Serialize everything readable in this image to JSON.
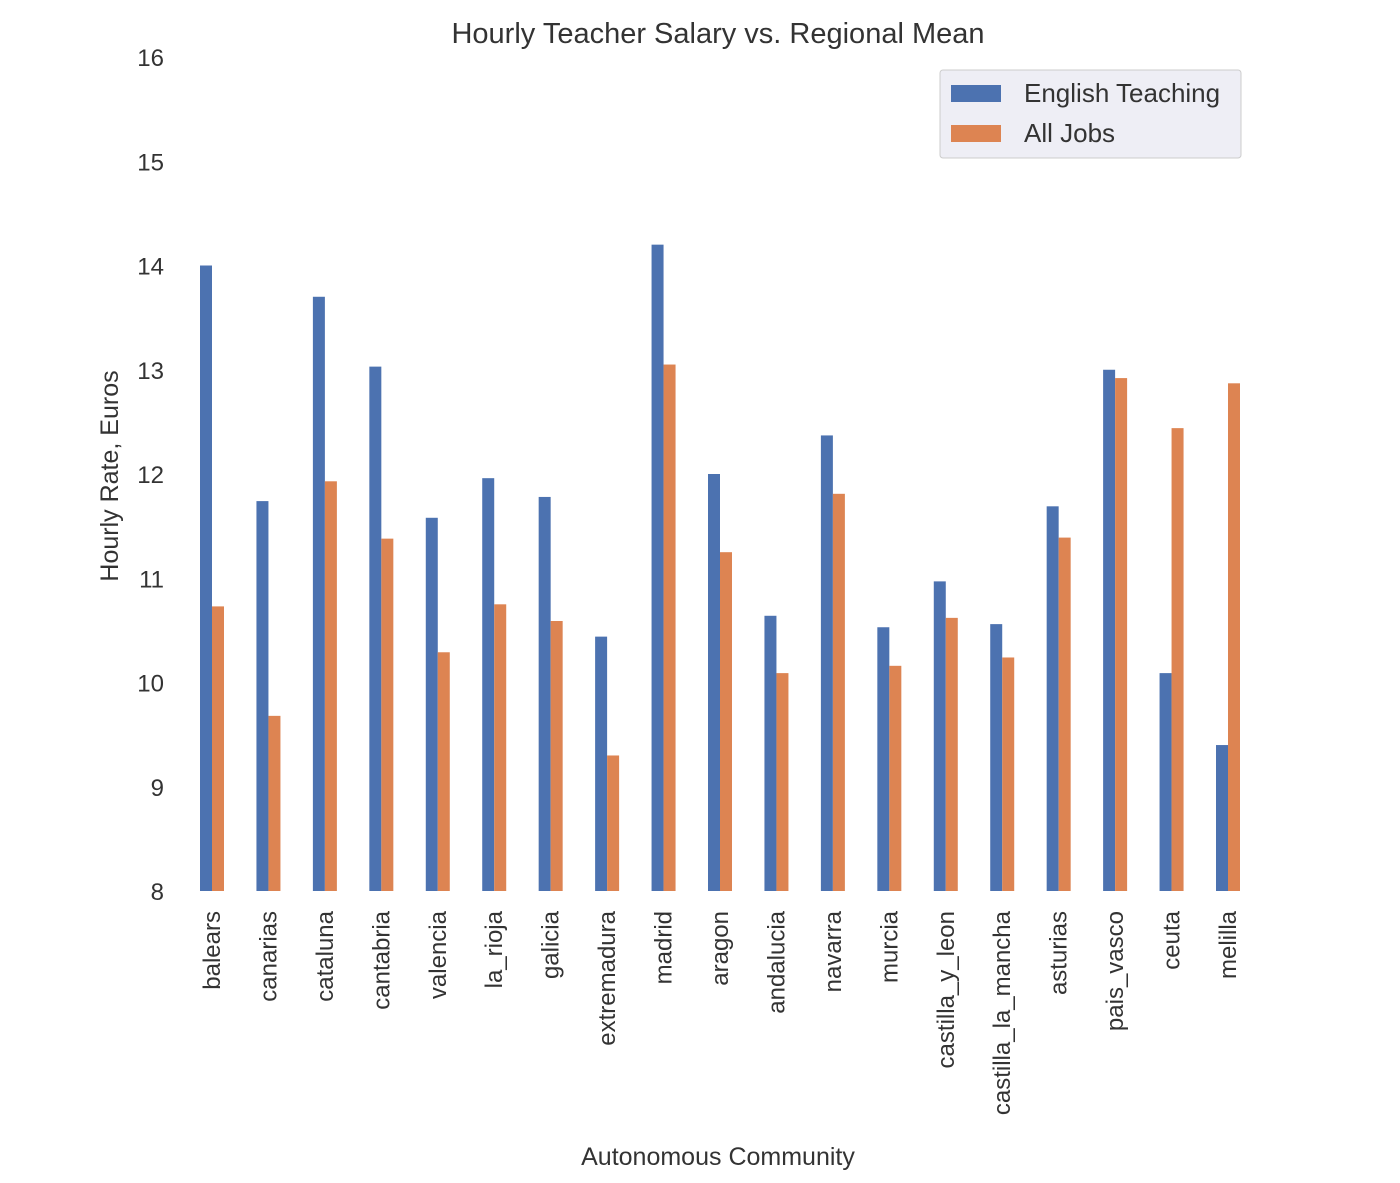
{
  "chart_data": {
    "type": "bar",
    "title": "Hourly Teacher Salary vs. Regional Mean",
    "xlabel": "Autonomous Community",
    "ylabel": "Hourly Rate, Euros",
    "ylim": [
      8,
      16
    ],
    "yticks": [
      8,
      9,
      10,
      11,
      12,
      13,
      14,
      15,
      16
    ],
    "grid": false,
    "legend_position": "top-right",
    "categories": [
      "balears",
      "canarias",
      "cataluna",
      "cantabria",
      "valencia",
      "la_rioja",
      "galicia",
      "extremadura",
      "madrid",
      "aragon",
      "andalucia",
      "navarra",
      "murcia",
      "castilla_y_leon",
      "castilla_la_mancha",
      "asturias",
      "pais_vasco",
      "ceuta",
      "melilla"
    ],
    "series": [
      {
        "name": "English Teaching",
        "color": "#4c72b0",
        "values": [
          14.0,
          11.74,
          13.7,
          13.03,
          11.58,
          11.96,
          11.78,
          10.44,
          14.2,
          12.0,
          10.64,
          12.37,
          10.53,
          10.97,
          10.56,
          11.69,
          13.0,
          10.09,
          9.4
        ]
      },
      {
        "name": "All Jobs",
        "color": "#dd8452",
        "values": [
          10.73,
          9.68,
          11.93,
          11.38,
          10.29,
          10.75,
          10.59,
          9.3,
          13.05,
          11.25,
          10.09,
          11.81,
          10.16,
          10.62,
          10.24,
          11.39,
          12.92,
          12.44,
          12.87
        ]
      }
    ]
  }
}
